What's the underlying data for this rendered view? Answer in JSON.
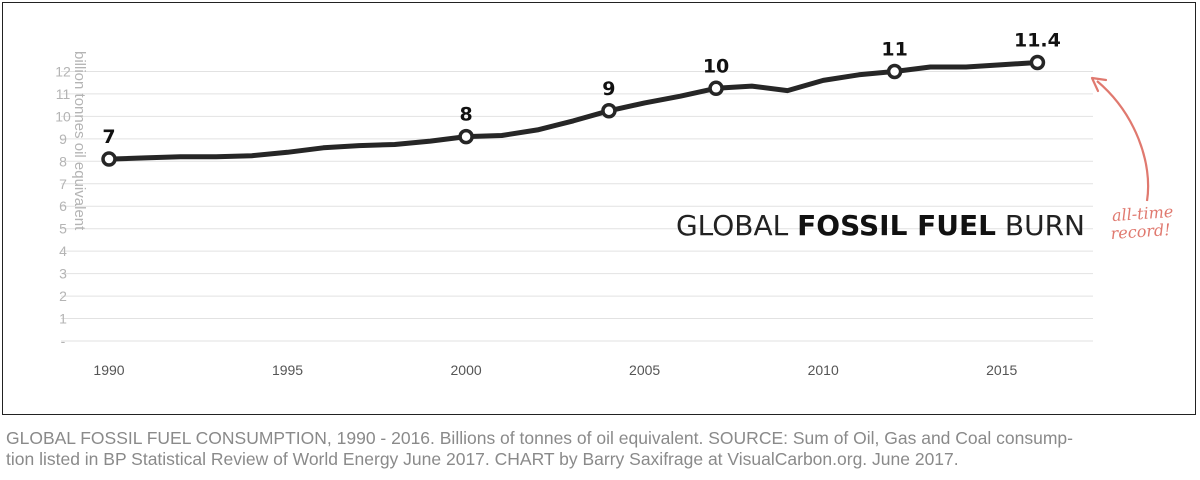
{
  "chart_data": {
    "type": "line",
    "title": "GLOBAL FOSSIL FUEL BURN",
    "title_parts": [
      "GLOBAL ",
      "FOSSIL FUEL",
      " BURN"
    ],
    "ylabel": "billion tonnes oil equivalent",
    "xlim": [
      1990,
      2017.5
    ],
    "ylim": [
      -1,
      12
    ],
    "yticks": [
      "-",
      "1",
      "2",
      "3",
      "4",
      "5",
      "6",
      "7",
      "8",
      "9",
      "10",
      "11",
      "12"
    ],
    "xticks": [
      "1990",
      "1995",
      "2000",
      "2005",
      "2010",
      "2015"
    ],
    "grid": true,
    "series": [
      {
        "x": [
          1990,
          1991,
          1992,
          1993,
          1994,
          1995,
          1996,
          1997,
          1998,
          1999,
          2000,
          2001,
          2002,
          2003,
          2004,
          2005,
          2006,
          2007,
          2008,
          2009,
          2010,
          2011,
          2012,
          2013,
          2014,
          2015,
          2016
        ],
        "values": [
          7.1,
          7.15,
          7.2,
          7.2,
          7.25,
          7.4,
          7.6,
          7.7,
          7.75,
          7.9,
          8.1,
          8.15,
          8.4,
          8.8,
          9.25,
          9.6,
          9.9,
          10.25,
          10.35,
          10.15,
          10.6,
          10.85,
          11.0,
          11.2,
          11.2,
          11.3,
          11.4
        ]
      }
    ],
    "markers": [
      {
        "x": 1990,
        "y": 7.1,
        "label": "7"
      },
      {
        "x": 2000,
        "y": 8.1,
        "label": "8"
      },
      {
        "x": 2004,
        "y": 9.25,
        "label": "9"
      },
      {
        "x": 2007,
        "y": 10.25,
        "label": "10"
      },
      {
        "x": 2012,
        "y": 11.0,
        "label": "11"
      },
      {
        "x": 2016,
        "y": 11.4,
        "label": "11.4"
      }
    ],
    "annotation": [
      "all-time",
      "record!"
    ],
    "colors": {
      "line": "#262626",
      "grid": "#e2e2e2",
      "annotation": "#e0796f",
      "tick": "#b4b4b4"
    }
  },
  "caption": {
    "line1": "GLOBAL FOSSIL FUEL CONSUMPTION, 1990 - 2016. Billions of tonnes of oil equivalent. SOURCE: Sum of Oil, Gas and Coal consump-",
    "line2": "tion listed in BP Statistical Review of World Energy June 2017. CHART by Barry Saxifrage at VisualCarbon.org. June 2017."
  }
}
